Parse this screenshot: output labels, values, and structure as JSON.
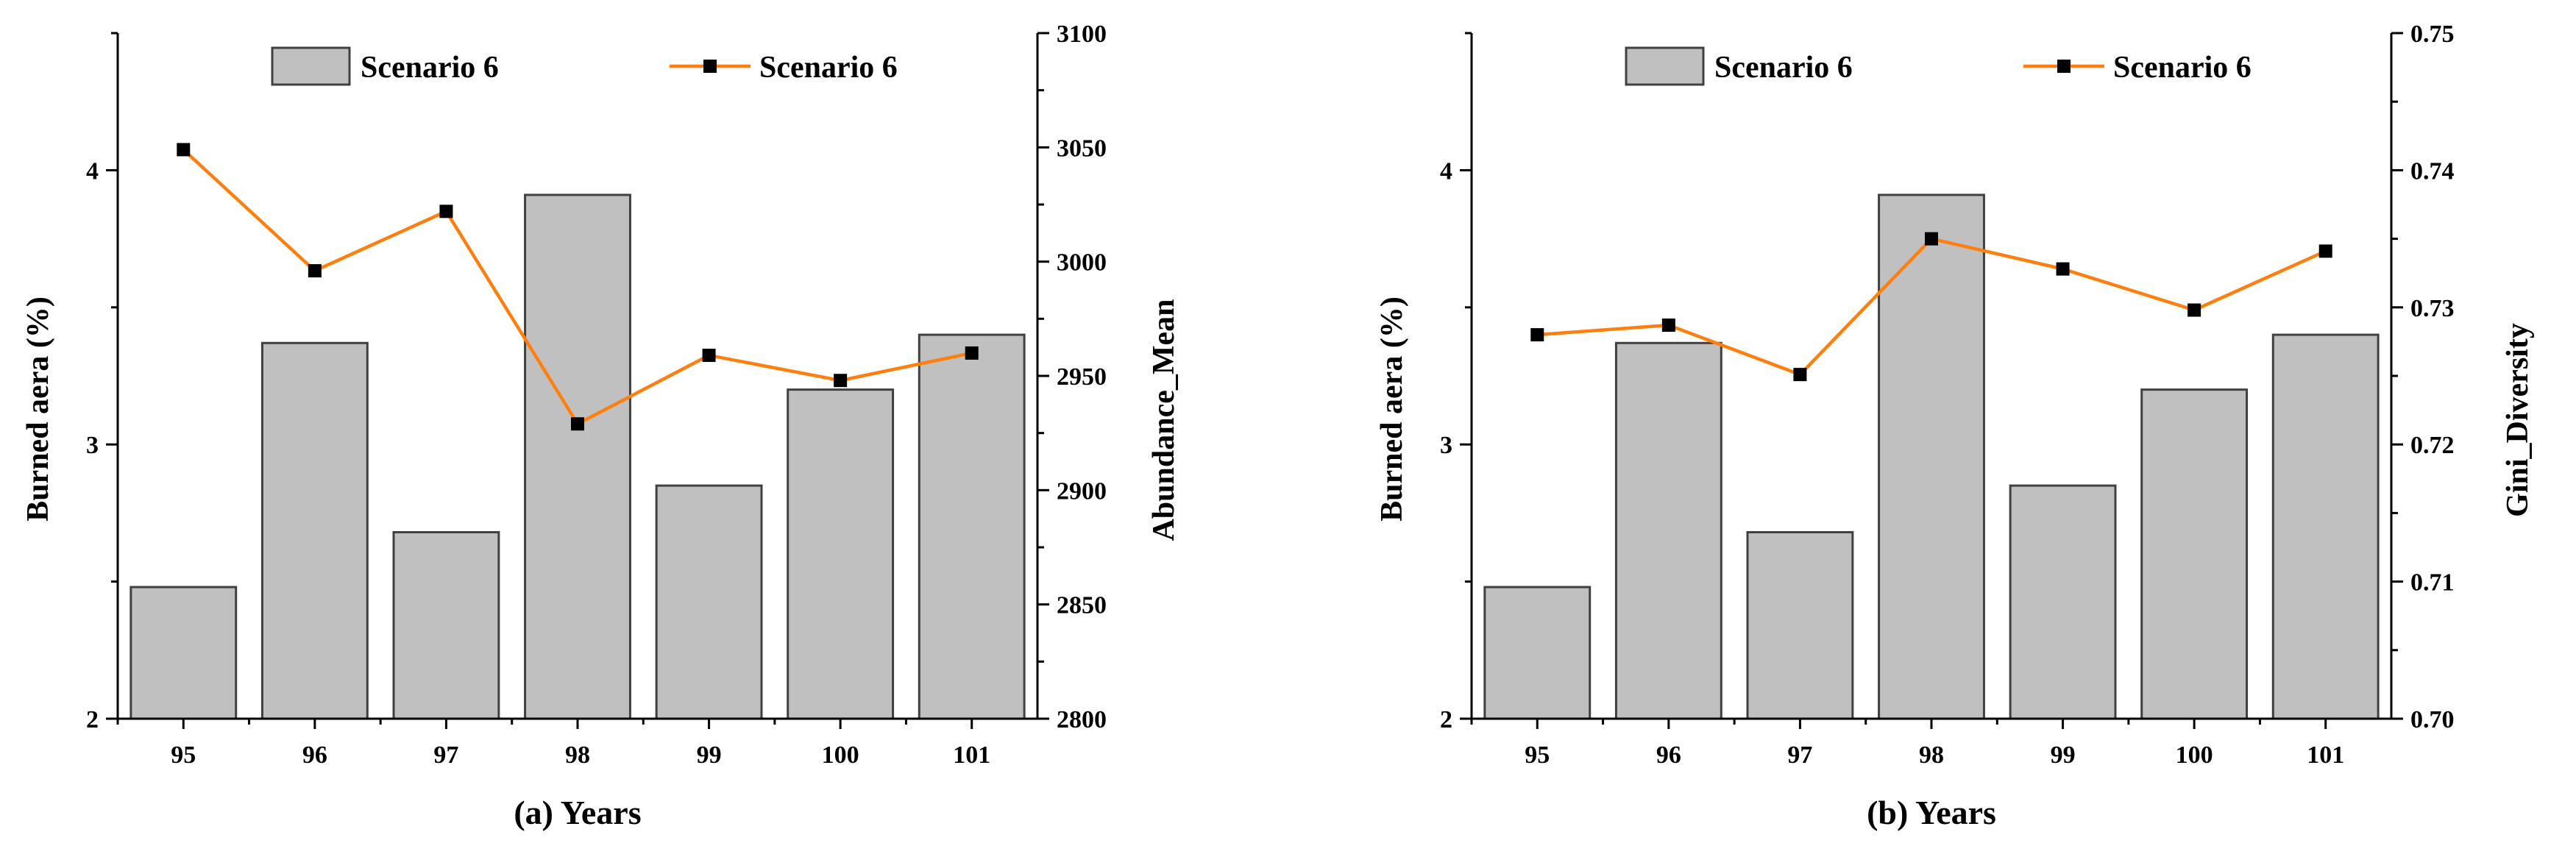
{
  "colors": {
    "bar_fill": "#c0c0c0",
    "bar_stroke": "#404040",
    "line": "#ff7f0e",
    "marker": "#000000",
    "axis": "#000000"
  },
  "chart_data": [
    {
      "type": "bar+line",
      "panel": "a",
      "title": "",
      "xlabel": "(a) Years",
      "ylabel_left": "Burned aera (%)",
      "ylabel_right": "Abundance_Mean",
      "categories": [
        "95",
        "96",
        "97",
        "98",
        "99",
        "100",
        "101"
      ],
      "left_ylim": [
        2,
        4.5
      ],
      "left_ticks": [
        "2",
        "3",
        "4"
      ],
      "right_ylim": [
        2800,
        3100
      ],
      "right_ticks": [
        "2800",
        "2850",
        "2900",
        "2950",
        "3000",
        "3050",
        "3100"
      ],
      "series": [
        {
          "name": "Scenario 6",
          "kind": "bar",
          "axis": "left",
          "values": [
            2.48,
            3.37,
            2.68,
            3.91,
            2.85,
            3.2,
            3.4
          ]
        },
        {
          "name": "Scenario 6",
          "kind": "line",
          "axis": "right",
          "values": [
            3049,
            2996,
            3022,
            2929,
            2959,
            2948,
            2960
          ]
        }
      ],
      "legend": [
        "Scenario 6",
        "Scenario 6"
      ]
    },
    {
      "type": "bar+line",
      "panel": "b",
      "title": "",
      "xlabel": "(b) Years",
      "ylabel_left": "Burned aera (%)",
      "ylabel_right": "Gini_Diversity",
      "categories": [
        "95",
        "96",
        "97",
        "98",
        "99",
        "100",
        "101"
      ],
      "left_ylim": [
        2,
        4.5
      ],
      "left_ticks": [
        "2",
        "3",
        "4"
      ],
      "right_ylim": [
        0.7,
        0.75
      ],
      "right_ticks": [
        "0.70",
        "0.71",
        "0.72",
        "0.73",
        "0.74",
        "0.75"
      ],
      "series": [
        {
          "name": "Scenario 6",
          "kind": "bar",
          "axis": "left",
          "values": [
            2.48,
            3.37,
            2.68,
            3.91,
            2.85,
            3.2,
            3.4
          ]
        },
        {
          "name": "Scenario 6",
          "kind": "line",
          "axis": "right",
          "values": [
            0.728,
            0.7287,
            0.7251,
            0.735,
            0.7328,
            0.7298,
            0.7341
          ]
        }
      ],
      "legend": [
        "Scenario 6",
        "Scenario 6"
      ]
    }
  ]
}
